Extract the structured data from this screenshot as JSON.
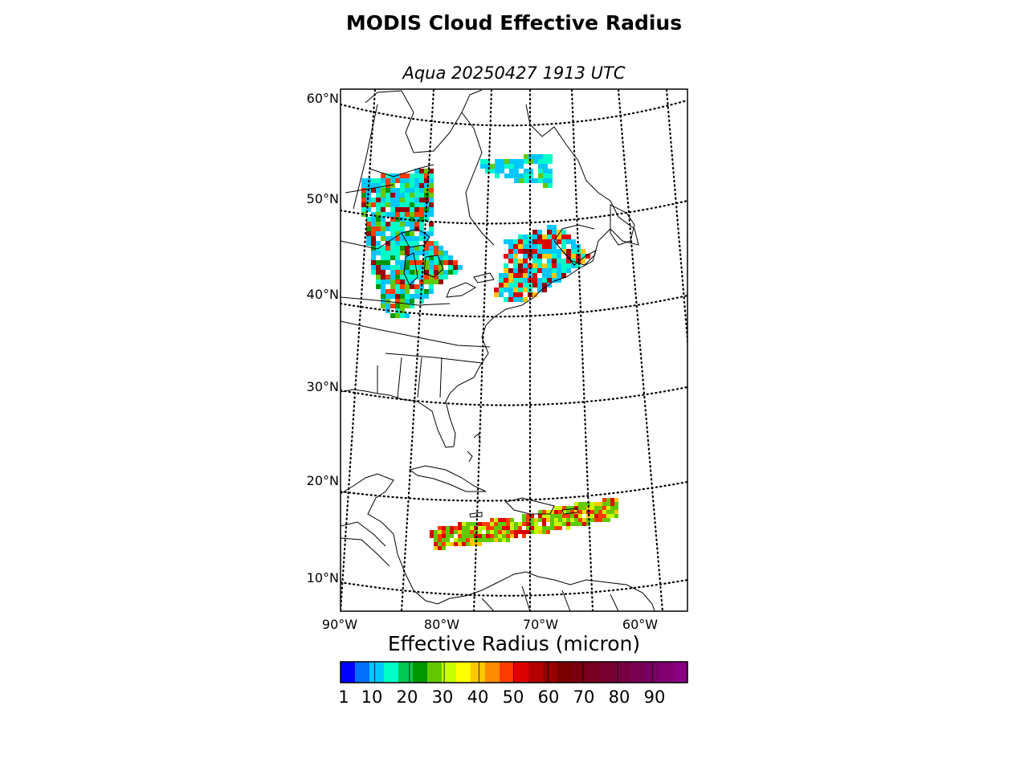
{
  "title": "MODIS Cloud Effective Radius",
  "subtitle": "Aqua 20250427 1913 UTC",
  "map": {
    "lat_labels": [
      "60°N",
      "50°N",
      "40°N",
      "30°N",
      "20°N",
      "10°N"
    ],
    "lon_labels": [
      "90°W",
      "80°W",
      "70°W",
      "60°W"
    ],
    "graticule_style": "dotted",
    "coastline_color": "#000000"
  },
  "colorbar": {
    "title": "Effective Radius (micron)",
    "ticks": [
      "1",
      "10",
      "20",
      "30",
      "40",
      "50",
      "60",
      "70",
      "80",
      "90"
    ],
    "colors": [
      "#0000ff",
      "#0070ff",
      "#00c8ff",
      "#00ffc8",
      "#00c850",
      "#009600",
      "#64c800",
      "#c8ff00",
      "#ffff00",
      "#ffc800",
      "#ff8c00",
      "#ff3c00",
      "#dc0000",
      "#b40000",
      "#960000",
      "#7a0000",
      "#780010",
      "#780020",
      "#780030",
      "#780040",
      "#780050",
      "#780060",
      "#800070",
      "#880080"
    ]
  },
  "swaths": [
    {
      "name": "great-lakes-swath",
      "colors": [
        "#00c8ff",
        "#00ffc8",
        "#009600",
        "#64c800",
        "#ff3c00",
        "#960000"
      ]
    },
    {
      "name": "northeast-swath",
      "colors": [
        "#00c8ff",
        "#00ffc8",
        "#ffc800",
        "#dc0000",
        "#960000"
      ]
    },
    {
      "name": "labrador-swath",
      "colors": [
        "#00c8ff",
        "#00ffc8",
        "#64c800"
      ]
    },
    {
      "name": "caribbean-swath",
      "colors": [
        "#64c800",
        "#c8ff00",
        "#ffc800",
        "#ff3c00",
        "#dc0000"
      ]
    }
  ]
}
